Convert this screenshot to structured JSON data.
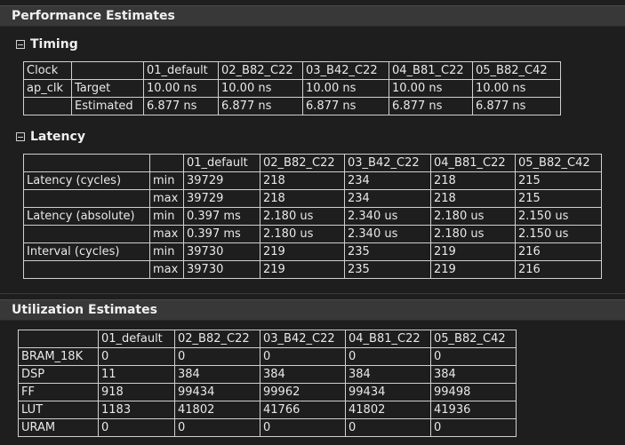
{
  "performance": {
    "title": "Performance Estimates",
    "timing": {
      "title": "Timing",
      "headers": [
        "Clock",
        "",
        "01_default",
        "02_B82_C22",
        "03_B42_C22",
        "04_B81_C22",
        "05_B82_C42"
      ],
      "rows": [
        [
          "ap_clk",
          "Target",
          "10.00 ns",
          "10.00 ns",
          "10.00 ns",
          "10.00 ns",
          "10.00 ns"
        ],
        [
          "",
          "Estimated",
          "6.877 ns",
          "6.877 ns",
          "6.877 ns",
          "6.877 ns",
          "6.877 ns"
        ]
      ]
    },
    "latency": {
      "title": "Latency",
      "headers": [
        "",
        "",
        "01_default",
        "02_B82_C22",
        "03_B42_C22",
        "04_B81_C22",
        "05_B82_C42"
      ],
      "rows": [
        [
          "Latency (cycles)",
          "min",
          "39729",
          "218",
          "234",
          "218",
          "215"
        ],
        [
          "",
          "max",
          "39729",
          "218",
          "234",
          "218",
          "215"
        ],
        [
          "Latency (absolute)",
          "min",
          "0.397 ms",
          "2.180 us",
          "2.340 us",
          "2.180 us",
          "2.150 us"
        ],
        [
          "",
          "max",
          "0.397 ms",
          "2.180 us",
          "2.340 us",
          "2.180 us",
          "2.150 us"
        ],
        [
          "Interval (cycles)",
          "min",
          "39730",
          "219",
          "235",
          "219",
          "216"
        ],
        [
          "",
          "max",
          "39730",
          "219",
          "235",
          "219",
          "216"
        ]
      ]
    }
  },
  "utilization": {
    "title": "Utilization Estimates",
    "headers": [
      "",
      "01_default",
      "02_B82_C22",
      "03_B42_C22",
      "04_B81_C22",
      "05_B82_C42"
    ],
    "rows": [
      [
        "BRAM_18K",
        "0",
        "0",
        "0",
        "0",
        "0"
      ],
      [
        "DSP",
        "11",
        "384",
        "384",
        "384",
        "384"
      ],
      [
        "FF",
        "918",
        "99434",
        "99962",
        "99434",
        "99498"
      ],
      [
        "LUT",
        "1183",
        "41802",
        "41766",
        "41802",
        "41936"
      ],
      [
        "URAM",
        "0",
        "0",
        "0",
        "0",
        "0"
      ]
    ]
  }
}
